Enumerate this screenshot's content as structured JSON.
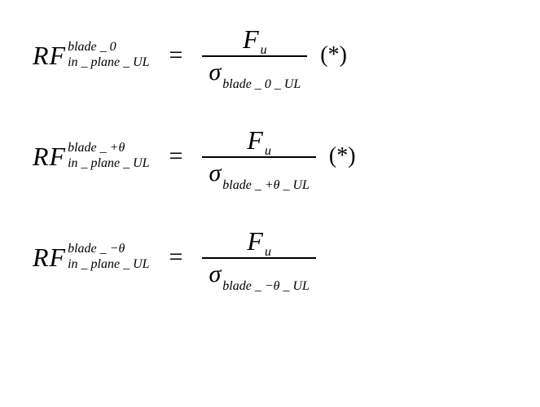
{
  "equations": [
    {
      "lhs_main": "RF",
      "lhs_sup": "blade _ 0",
      "lhs_sub": "in _ plane _ UL",
      "eq": "=",
      "num_main": "F",
      "num_sub": "u",
      "den_main": "σ",
      "den_sub": "blade _ 0 _ UL",
      "star": "(*)"
    },
    {
      "lhs_main": "RF",
      "lhs_sup": "blade _ +θ",
      "lhs_sub": "in _ plane _ UL",
      "eq": "=",
      "num_main": "F",
      "num_sub": "u",
      "den_main": "σ",
      "den_sub": "blade _ +θ _ UL",
      "star": "(*)"
    },
    {
      "lhs_main": "RF",
      "lhs_sup": "blade _ −θ",
      "lhs_sub": "in _ plane _ UL",
      "eq": "=",
      "num_main": "F",
      "num_sub": "u",
      "den_main": "σ",
      "den_sub": "blade _ −θ _ UL",
      "star": ""
    }
  ],
  "colors": {
    "text": "#000000",
    "background": "#ffffff"
  },
  "font": {
    "family": "Times New Roman",
    "main_size_pt": 32,
    "script_size_pt": 16
  }
}
